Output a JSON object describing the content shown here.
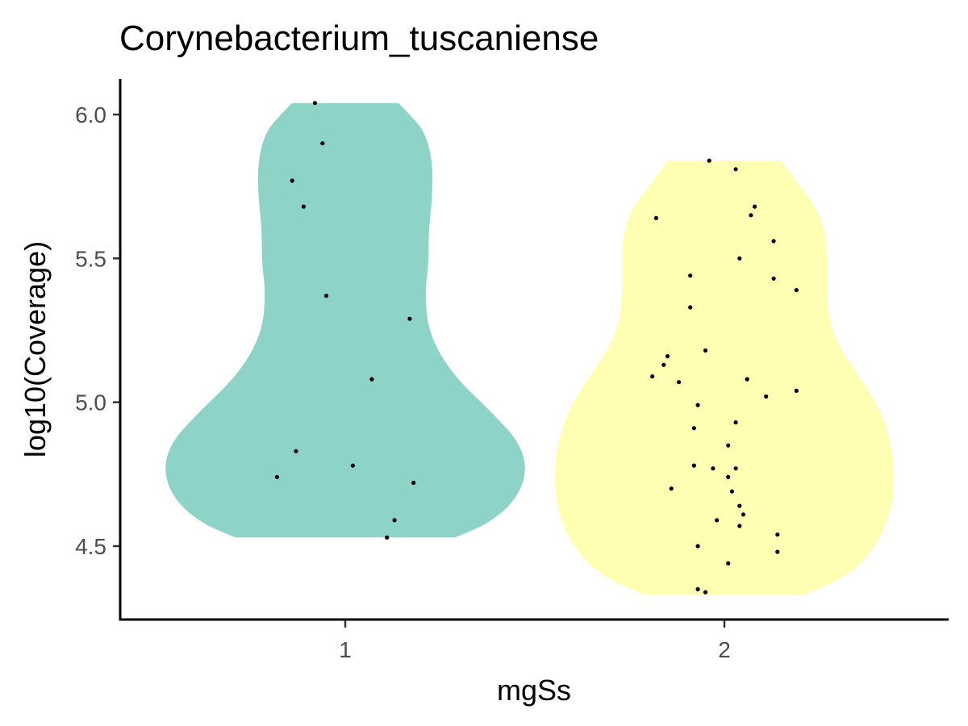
{
  "chart_data": {
    "type": "violin",
    "title": "Corynebacterium_tuscaniense",
    "xlabel": "mgSs",
    "ylabel": "log10(Coverage)",
    "categories": [
      "1",
      "2"
    ],
    "y_ticks": [
      "4.5",
      "5.0",
      "5.5",
      "6.0"
    ],
    "ylim": [
      4.25,
      6.12
    ],
    "grid": false,
    "legend": "none",
    "series": [
      {
        "category": "1",
        "color": "#8DD3C7",
        "range": [
          4.53,
          6.04
        ],
        "density_profile": [
          [
            4.53,
            0.29
          ],
          [
            4.58,
            0.38
          ],
          [
            4.66,
            0.45
          ],
          [
            4.76,
            0.48
          ],
          [
            4.86,
            0.46
          ],
          [
            4.96,
            0.39
          ],
          [
            5.1,
            0.28
          ],
          [
            5.24,
            0.22
          ],
          [
            5.38,
            0.21
          ],
          [
            5.48,
            0.22
          ],
          [
            5.6,
            0.22
          ],
          [
            5.72,
            0.23
          ],
          [
            5.84,
            0.23
          ],
          [
            5.94,
            0.21
          ],
          [
            6.0,
            0.17
          ],
          [
            6.04,
            0.14
          ]
        ],
        "points": [
          [
            0.92,
            6.04
          ],
          [
            0.94,
            5.9
          ],
          [
            0.86,
            5.77
          ],
          [
            0.89,
            5.68
          ],
          [
            0.95,
            5.37
          ],
          [
            1.17,
            5.29
          ],
          [
            1.07,
            5.08
          ],
          [
            0.87,
            4.83
          ],
          [
            1.02,
            4.78
          ],
          [
            0.82,
            4.74
          ],
          [
            1.18,
            4.72
          ],
          [
            1.13,
            4.59
          ],
          [
            1.11,
            4.53
          ]
        ]
      },
      {
        "category": "2",
        "color": "#FFFFB3",
        "range": [
          4.33,
          5.84
        ],
        "density_profile": [
          [
            4.33,
            0.21
          ],
          [
            4.4,
            0.33
          ],
          [
            4.5,
            0.4
          ],
          [
            4.62,
            0.44
          ],
          [
            4.74,
            0.45
          ],
          [
            4.86,
            0.44
          ],
          [
            4.98,
            0.41
          ],
          [
            5.1,
            0.35
          ],
          [
            5.22,
            0.29
          ],
          [
            5.34,
            0.27
          ],
          [
            5.46,
            0.27
          ],
          [
            5.56,
            0.27
          ],
          [
            5.66,
            0.25
          ],
          [
            5.75,
            0.2
          ],
          [
            5.84,
            0.15
          ]
        ],
        "points": [
          [
            1.96,
            5.84
          ],
          [
            2.03,
            5.81
          ],
          [
            1.82,
            5.64
          ],
          [
            2.07,
            5.65
          ],
          [
            2.08,
            5.68
          ],
          [
            2.13,
            5.56
          ],
          [
            2.04,
            5.5
          ],
          [
            1.91,
            5.44
          ],
          [
            2.13,
            5.43
          ],
          [
            2.19,
            5.39
          ],
          [
            1.91,
            5.33
          ],
          [
            1.95,
            5.18
          ],
          [
            1.85,
            5.16
          ],
          [
            1.84,
            5.13
          ],
          [
            1.81,
            5.09
          ],
          [
            1.88,
            5.07
          ],
          [
            2.06,
            5.08
          ],
          [
            2.19,
            5.04
          ],
          [
            2.11,
            5.02
          ],
          [
            1.93,
            4.99
          ],
          [
            2.03,
            4.93
          ],
          [
            1.92,
            4.91
          ],
          [
            2.01,
            4.85
          ],
          [
            1.92,
            4.78
          ],
          [
            1.97,
            4.77
          ],
          [
            2.03,
            4.77
          ],
          [
            2.01,
            4.74
          ],
          [
            1.86,
            4.7
          ],
          [
            2.02,
            4.69
          ],
          [
            2.04,
            4.64
          ],
          [
            2.05,
            4.61
          ],
          [
            1.98,
            4.59
          ],
          [
            2.04,
            4.57
          ],
          [
            2.14,
            4.54
          ],
          [
            1.93,
            4.5
          ],
          [
            2.14,
            4.48
          ],
          [
            2.01,
            4.44
          ],
          [
            1.93,
            4.35
          ],
          [
            1.95,
            4.34
          ]
        ]
      }
    ]
  }
}
